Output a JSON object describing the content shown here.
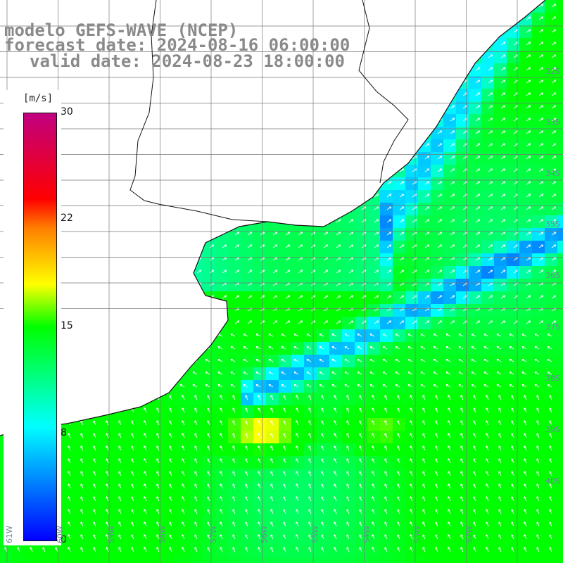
{
  "title": {
    "line1": "modelo GEFS-WAVE (NCEP)",
    "line2": "forecast date: 2024-08-16 06:00:00",
    "line3": "valid date: 2024-08-23 18:00:00"
  },
  "colorbar": {
    "unit": "[m/s]",
    "ticks": [
      "30",
      "22",
      "15",
      "8",
      "0"
    ],
    "tick_values": [
      30,
      22,
      15,
      8,
      0
    ],
    "colors": [
      "#0000ff",
      "#00ffff",
      "#00ff00",
      "#ffff00",
      "#ff8000",
      "#ff0000",
      "#c00080"
    ]
  },
  "map": {
    "variable": "wind speed and direction",
    "lat_labels": [
      "32S",
      "33S",
      "34S",
      "35S",
      "36S",
      "37S",
      "38S",
      "39S",
      "40S"
    ],
    "lon_labels": [
      "61W",
      "60W",
      "59W",
      "58W",
      "57W",
      "56W",
      "55W",
      "54W",
      "53W",
      "52W"
    ]
  }
}
